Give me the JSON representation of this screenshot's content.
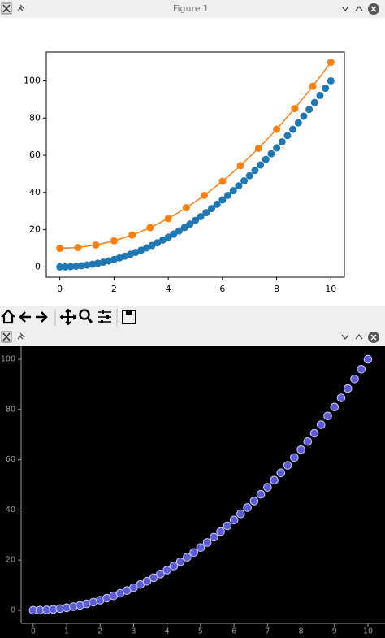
{
  "figure_window": {
    "title": "Figure 1"
  },
  "chart_data": [
    {
      "type": "scatter",
      "xlim": [
        -0.5,
        10.5
      ],
      "ylim": [
        -5.5,
        115.5
      ],
      "xticks": [
        0,
        2,
        4,
        6,
        8,
        10
      ],
      "yticks": [
        0,
        20,
        40,
        60,
        80,
        100
      ],
      "background": "#ffffff",
      "frame": true,
      "series": [
        {
          "color": "#1f77b4",
          "style": "markers",
          "x": [
            0,
            0.2,
            0.4,
            0.6,
            0.8,
            1,
            1.2,
            1.4,
            1.6,
            1.8,
            2,
            2.2,
            2.4,
            2.6,
            2.8,
            3,
            3.2,
            3.4,
            3.6,
            3.8,
            4,
            4.2,
            4.4,
            4.6,
            4.8,
            5,
            5.2,
            5.4,
            5.6,
            5.8,
            6,
            6.2,
            6.4,
            6.6,
            6.8,
            7,
            7.2,
            7.4,
            7.6,
            7.8,
            8,
            8.2,
            8.4,
            8.6,
            8.8,
            9,
            9.2,
            9.4,
            9.6,
            9.8,
            10
          ],
          "values": [
            0,
            0.04,
            0.16,
            0.36,
            0.64,
            1,
            1.44,
            1.96,
            2.56,
            3.24,
            4,
            4.84,
            5.76,
            6.76,
            7.84,
            9,
            10.24,
            11.56,
            12.96,
            14.44,
            16,
            17.64,
            19.36,
            21.16,
            23.04,
            25,
            27.04,
            29.16,
            31.36,
            33.64,
            36,
            38.44,
            40.96,
            43.56,
            46.24,
            49,
            51.84,
            54.76,
            57.76,
            60.84,
            64,
            67.24,
            70.56,
            73.96,
            77.44,
            81,
            84.64,
            88.36,
            92.16,
            96.04,
            100
          ]
        },
        {
          "color": "#ff7f0e",
          "style": "line-markers",
          "x": [
            0,
            0.6667,
            1.3333,
            2,
            2.6667,
            3.3333,
            4,
            4.6667,
            5.3333,
            6,
            6.6667,
            7.3333,
            8,
            8.6667,
            9.3333,
            10
          ],
          "values": [
            10,
            10.44,
            11.78,
            14,
            17.11,
            21.11,
            26,
            31.78,
            38.44,
            46,
            54.44,
            63.78,
            74,
            85.11,
            97.11,
            110
          ]
        }
      ]
    },
    {
      "type": "scatter",
      "xlim": [
        -0.36,
        10.51
      ],
      "ylim": [
        -5.2,
        105.2
      ],
      "xticks": [
        0,
        1,
        2,
        3,
        4,
        5,
        6,
        7,
        8,
        9,
        10
      ],
      "yticks": [
        0,
        20,
        40,
        60,
        80,
        100
      ],
      "background": "#000000",
      "frame": false,
      "series": [
        {
          "color": "#5c5cd6",
          "style": "markers",
          "x": [
            0,
            0.2,
            0.4,
            0.6,
            0.8,
            1,
            1.2,
            1.4,
            1.6,
            1.8,
            2,
            2.2,
            2.4,
            2.6,
            2.8,
            3,
            3.2,
            3.4,
            3.6,
            3.8,
            4,
            4.2,
            4.4,
            4.6,
            4.8,
            5,
            5.2,
            5.4,
            5.6,
            5.8,
            6,
            6.2,
            6.4,
            6.6,
            6.8,
            7,
            7.2,
            7.4,
            7.6,
            7.8,
            8,
            8.2,
            8.4,
            8.6,
            8.8,
            9,
            9.2,
            9.4,
            9.6,
            9.8,
            10
          ],
          "values": [
            0,
            0.04,
            0.16,
            0.36,
            0.64,
            1,
            1.44,
            1.96,
            2.56,
            3.24,
            4,
            4.84,
            5.76,
            6.76,
            7.84,
            9,
            10.24,
            11.56,
            12.96,
            14.44,
            16,
            17.64,
            19.36,
            21.16,
            23.04,
            25,
            27.04,
            29.16,
            31.36,
            33.64,
            36,
            38.44,
            40.96,
            43.56,
            46.24,
            49,
            51.84,
            54.76,
            57.76,
            60.84,
            64,
            67.24,
            70.56,
            73.96,
            77.44,
            81,
            84.64,
            88.36,
            92.16,
            96.04,
            100
          ]
        }
      ]
    }
  ]
}
